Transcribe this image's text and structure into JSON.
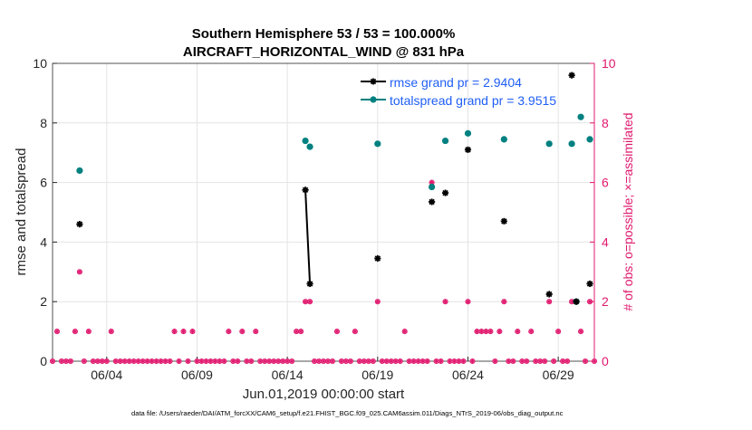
{
  "chart_data": {
    "type": "scatter",
    "title_line1": "Southern Hemisphere 53 / 53 = 100.000%",
    "title_line2": "AIRCRAFT_HORIZONTAL_WIND @ 831 hPa",
    "xlabel": "Jun.01,2019 00:00:00 start",
    "ylabel_left": "rmse and totalspread",
    "ylabel_right": "# of obs: o=possible; ×=assimilated",
    "footer": "data file: /Users/raeder/DAI/ATM_forcXX/CAM6_setup/f.e21.FHIST_BGC.f09_025.CAM6assim.011/Diags_NTrS_2019-06/obs_diag_output.nc",
    "x_unit": "day of June 2019 (1.0 = Jun 01 00:00)",
    "xlim": [
      1.0,
      31.0
    ],
    "ylim_left": [
      0,
      10
    ],
    "ylim_right": [
      0,
      10
    ],
    "x_ticks": [
      {
        "value": 4,
        "label": "06/04"
      },
      {
        "value": 9,
        "label": "06/09"
      },
      {
        "value": 14,
        "label": "06/14"
      },
      {
        "value": 19,
        "label": "06/19"
      },
      {
        "value": 24,
        "label": "06/24"
      },
      {
        "value": 29,
        "label": "06/29"
      }
    ],
    "y_ticks_left": [
      "0",
      "2",
      "4",
      "6",
      "8",
      "10"
    ],
    "y_ticks_right": [
      "0",
      "2",
      "4",
      "6",
      "8",
      "10"
    ],
    "colors": {
      "rmse": "#000000",
      "totalspread": "#008080",
      "obs": "#e0196e",
      "legend_text": "#1f5ef5",
      "grid": "#e4e4e4",
      "axis": "#262626"
    },
    "legend": [
      {
        "name": "rmse grand pr = 2.9404",
        "key": "rmse"
      },
      {
        "name": "totalspread grand pr = 3.9515",
        "key": "totalspread"
      }
    ],
    "legend_position": "top-right",
    "series": [
      {
        "name": "rmse",
        "segments": [
          [
            [
              2.5,
              4.6
            ]
          ],
          [
            [
              15.0,
              5.75
            ],
            [
              15.25,
              2.6
            ]
          ],
          [
            [
              19.0,
              3.45
            ]
          ],
          [
            [
              22.0,
              5.35
            ]
          ],
          [
            [
              22.75,
              5.65
            ]
          ],
          [
            [
              24.0,
              7.1
            ]
          ],
          [
            [
              26.0,
              4.7
            ]
          ],
          [
            [
              28.5,
              2.25
            ]
          ],
          [
            [
              29.75,
              9.6
            ]
          ],
          [
            [
              30.0,
              2.0
            ]
          ],
          [
            [
              30.75,
              2.6
            ]
          ]
        ]
      },
      {
        "name": "totalspread",
        "segments": [
          [
            [
              2.5,
              6.4
            ]
          ],
          [
            [
              15.0,
              7.4
            ]
          ],
          [
            [
              15.25,
              7.2
            ]
          ],
          [
            [
              19.0,
              7.3
            ]
          ],
          [
            [
              22.0,
              5.85
            ]
          ],
          [
            [
              22.75,
              7.4
            ]
          ],
          [
            [
              24.0,
              7.65
            ]
          ],
          [
            [
              26.0,
              7.45
            ]
          ],
          [
            [
              28.5,
              7.3
            ]
          ],
          [
            [
              29.75,
              7.3
            ]
          ],
          [
            [
              30.0,
              2.0
            ]
          ],
          [
            [
              30.25,
              8.2
            ]
          ],
          [
            [
              30.75,
              7.45
            ]
          ]
        ]
      }
    ],
    "obs_possible": [
      [
        1.0,
        0
      ],
      [
        1.25,
        1
      ],
      [
        1.5,
        0
      ],
      [
        1.75,
        0
      ],
      [
        2.0,
        0
      ],
      [
        2.25,
        1
      ],
      [
        2.5,
        3
      ],
      [
        2.75,
        0
      ],
      [
        3.0,
        1
      ],
      [
        3.25,
        0
      ],
      [
        3.5,
        0
      ],
      [
        3.75,
        0
      ],
      [
        4.0,
        0
      ],
      [
        4.25,
        1
      ],
      [
        4.5,
        0
      ],
      [
        4.75,
        0
      ],
      [
        5.0,
        0
      ],
      [
        5.25,
        0
      ],
      [
        5.5,
        0
      ],
      [
        5.75,
        0
      ],
      [
        6.0,
        0
      ],
      [
        6.25,
        0
      ],
      [
        6.5,
        0
      ],
      [
        6.75,
        0
      ],
      [
        7.0,
        0
      ],
      [
        7.25,
        0
      ],
      [
        7.5,
        0
      ],
      [
        7.75,
        1
      ],
      [
        8.0,
        0
      ],
      [
        8.25,
        1
      ],
      [
        8.5,
        0
      ],
      [
        8.75,
        1
      ],
      [
        9.0,
        0
      ],
      [
        9.25,
        0
      ],
      [
        9.5,
        0
      ],
      [
        9.75,
        0
      ],
      [
        10.0,
        0
      ],
      [
        10.25,
        0
      ],
      [
        10.5,
        0
      ],
      [
        10.75,
        1
      ],
      [
        11.0,
        0
      ],
      [
        11.25,
        0
      ],
      [
        11.5,
        1
      ],
      [
        11.75,
        0
      ],
      [
        12.0,
        0
      ],
      [
        12.25,
        1
      ],
      [
        12.5,
        0
      ],
      [
        12.75,
        0
      ],
      [
        13.0,
        0
      ],
      [
        13.25,
        0
      ],
      [
        13.5,
        0
      ],
      [
        13.75,
        0
      ],
      [
        14.0,
        0
      ],
      [
        14.25,
        0
      ],
      [
        14.5,
        1
      ],
      [
        14.75,
        1
      ],
      [
        15.0,
        2
      ],
      [
        15.25,
        2
      ],
      [
        15.5,
        0
      ],
      [
        15.75,
        0
      ],
      [
        16.0,
        0
      ],
      [
        16.25,
        0
      ],
      [
        16.5,
        0
      ],
      [
        16.75,
        1
      ],
      [
        17.0,
        0
      ],
      [
        17.25,
        0
      ],
      [
        17.5,
        0
      ],
      [
        17.75,
        1
      ],
      [
        18.0,
        0
      ],
      [
        18.25,
        0
      ],
      [
        18.5,
        0
      ],
      [
        18.75,
        0
      ],
      [
        19.0,
        2
      ],
      [
        19.25,
        0
      ],
      [
        19.5,
        0
      ],
      [
        19.75,
        0
      ],
      [
        20.0,
        0
      ],
      [
        20.25,
        0
      ],
      [
        20.5,
        1
      ],
      [
        20.75,
        0
      ],
      [
        21.0,
        0
      ],
      [
        21.25,
        0
      ],
      [
        21.5,
        0
      ],
      [
        21.75,
        0
      ],
      [
        22.0,
        6
      ],
      [
        22.25,
        0
      ],
      [
        22.5,
        0
      ],
      [
        22.75,
        2
      ],
      [
        23.0,
        0
      ],
      [
        23.25,
        0
      ],
      [
        23.5,
        0
      ],
      [
        23.75,
        0
      ],
      [
        24.0,
        2
      ],
      [
        24.25,
        0
      ],
      [
        24.5,
        1
      ],
      [
        24.75,
        1
      ],
      [
        25.0,
        1
      ],
      [
        25.25,
        1
      ],
      [
        25.5,
        0
      ],
      [
        25.75,
        1
      ],
      [
        26.0,
        2
      ],
      [
        26.25,
        0
      ],
      [
        26.5,
        0
      ],
      [
        26.75,
        1
      ],
      [
        27.0,
        0
      ],
      [
        27.25,
        0
      ],
      [
        27.5,
        1
      ],
      [
        27.75,
        0
      ],
      [
        28.0,
        0
      ],
      [
        28.25,
        0
      ],
      [
        28.5,
        2
      ],
      [
        28.75,
        0
      ],
      [
        29.0,
        1
      ],
      [
        29.25,
        0
      ],
      [
        29.5,
        0
      ],
      [
        29.75,
        2
      ],
      [
        30.0,
        2
      ],
      [
        30.25,
        1
      ],
      [
        30.5,
        0
      ],
      [
        30.75,
        2
      ],
      [
        31.0,
        0
      ]
    ],
    "obs_assimilated": [
      [
        1.0,
        0
      ],
      [
        1.25,
        1
      ],
      [
        1.5,
        0
      ],
      [
        1.75,
        0
      ],
      [
        2.0,
        0
      ],
      [
        2.25,
        1
      ],
      [
        2.5,
        3
      ],
      [
        2.75,
        0
      ],
      [
        3.0,
        1
      ],
      [
        3.25,
        0
      ],
      [
        3.5,
        0
      ],
      [
        3.75,
        0
      ],
      [
        4.0,
        0
      ],
      [
        4.25,
        1
      ],
      [
        4.5,
        0
      ],
      [
        4.75,
        0
      ],
      [
        5.0,
        0
      ],
      [
        5.25,
        0
      ],
      [
        5.5,
        0
      ],
      [
        5.75,
        0
      ],
      [
        6.0,
        0
      ],
      [
        6.25,
        0
      ],
      [
        6.5,
        0
      ],
      [
        6.75,
        0
      ],
      [
        7.0,
        0
      ],
      [
        7.25,
        0
      ],
      [
        7.5,
        0
      ],
      [
        7.75,
        1
      ],
      [
        8.0,
        0
      ],
      [
        8.25,
        1
      ],
      [
        8.5,
        0
      ],
      [
        8.75,
        1
      ],
      [
        9.0,
        0
      ],
      [
        9.25,
        0
      ],
      [
        9.5,
        0
      ],
      [
        9.75,
        0
      ],
      [
        10.0,
        0
      ],
      [
        10.25,
        0
      ],
      [
        10.5,
        0
      ],
      [
        10.75,
        1
      ],
      [
        11.0,
        0
      ],
      [
        11.25,
        0
      ],
      [
        11.5,
        1
      ],
      [
        11.75,
        0
      ],
      [
        12.0,
        0
      ],
      [
        12.25,
        1
      ],
      [
        12.5,
        0
      ],
      [
        12.75,
        0
      ],
      [
        13.0,
        0
      ],
      [
        13.25,
        0
      ],
      [
        13.5,
        0
      ],
      [
        13.75,
        0
      ],
      [
        14.0,
        0
      ],
      [
        14.25,
        0
      ],
      [
        14.5,
        1
      ],
      [
        14.75,
        1
      ],
      [
        15.0,
        2
      ],
      [
        15.25,
        2
      ],
      [
        15.5,
        0
      ],
      [
        15.75,
        0
      ],
      [
        16.0,
        0
      ],
      [
        16.25,
        0
      ],
      [
        16.5,
        0
      ],
      [
        16.75,
        1
      ],
      [
        17.0,
        0
      ],
      [
        17.25,
        0
      ],
      [
        17.5,
        0
      ],
      [
        17.75,
        1
      ],
      [
        18.0,
        0
      ],
      [
        18.25,
        0
      ],
      [
        18.5,
        0
      ],
      [
        18.75,
        0
      ],
      [
        19.0,
        2
      ],
      [
        19.25,
        0
      ],
      [
        19.5,
        0
      ],
      [
        19.75,
        0
      ],
      [
        20.0,
        0
      ],
      [
        20.25,
        0
      ],
      [
        20.5,
        1
      ],
      [
        20.75,
        0
      ],
      [
        21.0,
        0
      ],
      [
        21.25,
        0
      ],
      [
        21.5,
        0
      ],
      [
        21.75,
        0
      ],
      [
        22.0,
        6
      ],
      [
        22.25,
        0
      ],
      [
        22.5,
        0
      ],
      [
        22.75,
        2
      ],
      [
        23.0,
        0
      ],
      [
        23.25,
        0
      ],
      [
        23.5,
        0
      ],
      [
        23.75,
        0
      ],
      [
        24.0,
        2
      ],
      [
        24.25,
        0
      ],
      [
        24.5,
        1
      ],
      [
        24.75,
        1
      ],
      [
        25.0,
        1
      ],
      [
        25.25,
        1
      ],
      [
        25.5,
        0
      ],
      [
        25.75,
        1
      ],
      [
        26.0,
        2
      ],
      [
        26.25,
        0
      ],
      [
        26.5,
        0
      ],
      [
        26.75,
        1
      ],
      [
        27.0,
        0
      ],
      [
        27.25,
        0
      ],
      [
        27.5,
        1
      ],
      [
        27.75,
        0
      ],
      [
        28.0,
        0
      ],
      [
        28.25,
        0
      ],
      [
        28.5,
        2
      ],
      [
        28.75,
        0
      ],
      [
        29.0,
        1
      ],
      [
        29.25,
        0
      ],
      [
        29.5,
        0
      ],
      [
        29.75,
        2
      ],
      [
        30.0,
        2
      ],
      [
        30.25,
        1
      ],
      [
        30.5,
        0
      ],
      [
        30.75,
        2
      ],
      [
        31.0,
        0
      ]
    ]
  }
}
